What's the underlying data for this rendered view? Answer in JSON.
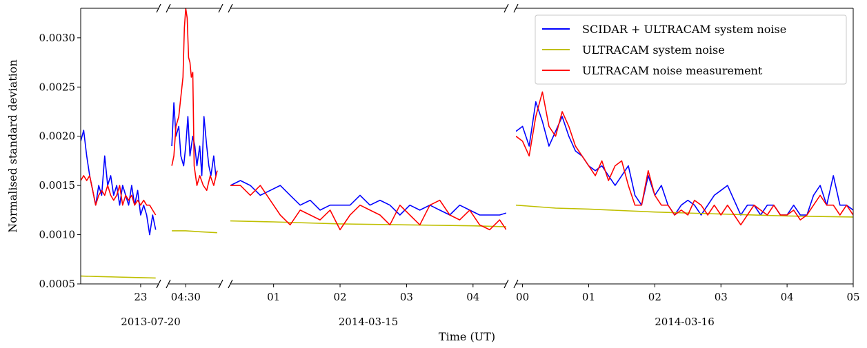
{
  "chart_data": {
    "type": "line",
    "xlabel": "Time (UT)",
    "ylabel": "Normalised standard deviation",
    "ylim": [
      0.0005,
      0.0033
    ],
    "yticks": [
      "0.0005",
      "0.0010",
      "0.0015",
      "0.0020",
      "0.0025",
      "0.0030"
    ],
    "ytick_values": [
      0.0005,
      0.001,
      0.0015,
      0.002,
      0.0025,
      0.003
    ],
    "grid": false,
    "legend_position": "top-right",
    "broken_x_axis": true,
    "colors": {
      "blue": "#0000ff",
      "yellow": "#bfbf00",
      "red": "#ff0000",
      "axis": "#000000"
    },
    "series_names": [
      "SCIDAR + ULTRACAM system noise",
      "ULTRACAM system noise",
      "ULTRACAM noise measurement"
    ],
    "panels": [
      {
        "date": "2013-07-20",
        "xlim": [
          22.0,
          23.3
        ],
        "ticks": [
          {
            "value": 23.0,
            "label": "23"
          }
        ],
        "series": [
          {
            "color_key": "blue",
            "x": [
              22.0,
              22.05,
              22.1,
              22.15,
              22.2,
              22.25,
              22.3,
              22.35,
              22.4,
              22.45,
              22.5,
              22.55,
              22.6,
              22.65,
              22.7,
              22.75,
              22.8,
              22.85,
              22.9,
              22.95,
              23.0,
              23.05,
              23.1,
              23.15,
              23.2,
              23.25
            ],
            "y": [
              0.00195,
              0.00206,
              0.0018,
              0.0016,
              0.00145,
              0.0013,
              0.0015,
              0.0014,
              0.0018,
              0.0015,
              0.0016,
              0.0014,
              0.0015,
              0.0013,
              0.0015,
              0.0014,
              0.0013,
              0.0015,
              0.0013,
              0.00145,
              0.0012,
              0.0013,
              0.0012,
              0.001,
              0.0012,
              0.00105
            ]
          },
          {
            "color_key": "yellow",
            "x": [
              22.0,
              22.3,
              22.6,
              22.9,
              23.25
            ],
            "y": [
              0.00058,
              0.000575,
              0.00057,
              0.000565,
              0.00056
            ]
          },
          {
            "color_key": "red",
            "x": [
              22.0,
              22.05,
              22.1,
              22.15,
              22.2,
              22.25,
              22.3,
              22.35,
              22.4,
              22.45,
              22.5,
              22.55,
              22.6,
              22.65,
              22.7,
              22.75,
              22.8,
              22.85,
              22.9,
              22.95,
              23.0,
              23.05,
              23.1,
              23.15,
              23.2,
              23.25
            ],
            "y": [
              0.00155,
              0.0016,
              0.00155,
              0.0016,
              0.00145,
              0.0013,
              0.0014,
              0.00145,
              0.0014,
              0.0015,
              0.0014,
              0.00135,
              0.0014,
              0.0015,
              0.0013,
              0.0014,
              0.00135,
              0.0014,
              0.0013,
              0.00135,
              0.0013,
              0.00135,
              0.0013,
              0.0013,
              0.00125,
              0.0012
            ]
          }
        ]
      },
      {
        "date": "2013-07-20",
        "xlim": [
          4.25,
          5.0
        ],
        "ticks": [
          {
            "value": 4.5,
            "label": "04:30"
          }
        ],
        "series": [
          {
            "color_key": "blue",
            "x": [
              4.3,
              4.33,
              4.36,
              4.4,
              4.43,
              4.47,
              4.5,
              4.53,
              4.56,
              4.6,
              4.63,
              4.66,
              4.7,
              4.73,
              4.76,
              4.8,
              4.83,
              4.86,
              4.9,
              4.93,
              4.95
            ],
            "y": [
              0.0019,
              0.00234,
              0.002,
              0.0021,
              0.0018,
              0.0017,
              0.0019,
              0.0022,
              0.0018,
              0.002,
              0.0019,
              0.0017,
              0.0019,
              0.0016,
              0.0022,
              0.0019,
              0.0017,
              0.0016,
              0.0018,
              0.0016,
              0.00165
            ]
          },
          {
            "color_key": "yellow",
            "x": [
              4.3,
              4.5,
              4.7,
              4.95
            ],
            "y": [
              0.00104,
              0.00104,
              0.00103,
              0.00102
            ]
          },
          {
            "color_key": "red",
            "x": [
              4.3,
              4.33,
              4.36,
              4.4,
              4.43,
              4.46,
              4.48,
              4.5,
              4.52,
              4.54,
              4.56,
              4.58,
              4.6,
              4.62,
              4.64,
              4.66,
              4.7,
              4.75,
              4.8,
              4.85,
              4.9,
              4.95
            ],
            "y": [
              0.0017,
              0.0018,
              0.0021,
              0.0022,
              0.0024,
              0.0026,
              0.0031,
              0.0033,
              0.0032,
              0.0028,
              0.00275,
              0.0026,
              0.00265,
              0.0017,
              0.0016,
              0.0015,
              0.0016,
              0.0015,
              0.00145,
              0.0016,
              0.0015,
              0.00165
            ]
          }
        ]
      },
      {
        "date": "2014-03-15",
        "xlim": [
          0.35,
          4.5
        ],
        "ticks": [
          {
            "value": 1,
            "label": "01"
          },
          {
            "value": 2,
            "label": "02"
          },
          {
            "value": 3,
            "label": "03"
          },
          {
            "value": 4,
            "label": "04"
          }
        ],
        "series": [
          {
            "color_key": "blue",
            "x": [
              0.35,
              0.5,
              0.65,
              0.8,
              0.95,
              1.1,
              1.25,
              1.4,
              1.55,
              1.7,
              1.85,
              2.0,
              2.15,
              2.3,
              2.45,
              2.6,
              2.75,
              2.9,
              3.05,
              3.2,
              3.35,
              3.5,
              3.65,
              3.8,
              3.95,
              4.1,
              4.25,
              4.4,
              4.5
            ],
            "y": [
              0.0015,
              0.00155,
              0.0015,
              0.0014,
              0.00145,
              0.0015,
              0.0014,
              0.0013,
              0.00135,
              0.00125,
              0.0013,
              0.0013,
              0.0013,
              0.0014,
              0.0013,
              0.00135,
              0.0013,
              0.0012,
              0.0013,
              0.00125,
              0.0013,
              0.00125,
              0.0012,
              0.0013,
              0.00125,
              0.0012,
              0.0012,
              0.0012,
              0.00122
            ]
          },
          {
            "color_key": "yellow",
            "x": [
              0.35,
              1.0,
              2.0,
              3.0,
              4.0,
              4.5
            ],
            "y": [
              0.00114,
              0.00113,
              0.00111,
              0.0011,
              0.00109,
              0.00108
            ]
          },
          {
            "color_key": "red",
            "x": [
              0.35,
              0.5,
              0.65,
              0.8,
              0.95,
              1.1,
              1.25,
              1.4,
              1.55,
              1.7,
              1.85,
              2.0,
              2.15,
              2.3,
              2.45,
              2.6,
              2.75,
              2.9,
              3.05,
              3.2,
              3.35,
              3.5,
              3.65,
              3.8,
              3.95,
              4.1,
              4.25,
              4.4,
              4.5
            ],
            "y": [
              0.0015,
              0.0015,
              0.0014,
              0.0015,
              0.00135,
              0.0012,
              0.0011,
              0.00125,
              0.0012,
              0.00115,
              0.00125,
              0.00105,
              0.0012,
              0.0013,
              0.00125,
              0.0012,
              0.0011,
              0.0013,
              0.0012,
              0.0011,
              0.0013,
              0.00135,
              0.0012,
              0.00115,
              0.00125,
              0.0011,
              0.00105,
              0.00115,
              0.00105
            ]
          }
        ]
      },
      {
        "date": "2014-03-16",
        "xlim": [
          -0.1,
          5.0
        ],
        "ticks": [
          {
            "value": 0,
            "label": "00"
          },
          {
            "value": 1,
            "label": "01"
          },
          {
            "value": 2,
            "label": "02"
          },
          {
            "value": 3,
            "label": "03"
          },
          {
            "value": 4,
            "label": "04"
          },
          {
            "value": 5,
            "label": "05"
          }
        ],
        "series": [
          {
            "color_key": "blue",
            "x": [
              -0.1,
              0.0,
              0.1,
              0.2,
              0.3,
              0.4,
              0.5,
              0.6,
              0.7,
              0.8,
              0.9,
              1.0,
              1.1,
              1.2,
              1.3,
              1.4,
              1.5,
              1.6,
              1.7,
              1.8,
              1.9,
              2.0,
              2.1,
              2.2,
              2.3,
              2.4,
              2.5,
              2.6,
              2.7,
              2.8,
              2.9,
              3.0,
              3.1,
              3.2,
              3.3,
              3.4,
              3.5,
              3.6,
              3.7,
              3.8,
              3.9,
              4.0,
              4.1,
              4.2,
              4.3,
              4.4,
              4.5,
              4.6,
              4.7,
              4.8,
              4.9,
              5.0
            ],
            "y": [
              0.00205,
              0.0021,
              0.0019,
              0.00235,
              0.00215,
              0.0019,
              0.00205,
              0.0022,
              0.002,
              0.00185,
              0.0018,
              0.0017,
              0.00165,
              0.0017,
              0.0016,
              0.0015,
              0.0016,
              0.0017,
              0.0014,
              0.0013,
              0.0016,
              0.0014,
              0.0015,
              0.0013,
              0.0012,
              0.0013,
              0.00135,
              0.0013,
              0.0012,
              0.0013,
              0.0014,
              0.00145,
              0.0015,
              0.00135,
              0.0012,
              0.0013,
              0.0013,
              0.0012,
              0.0013,
              0.0013,
              0.0012,
              0.0012,
              0.0013,
              0.0012,
              0.0012,
              0.0014,
              0.0015,
              0.0013,
              0.0016,
              0.0013,
              0.0013,
              0.00125
            ]
          },
          {
            "color_key": "yellow",
            "x": [
              -0.1,
              0.5,
              1.0,
              2.0,
              3.0,
              4.0,
              5.0
            ],
            "y": [
              0.0013,
              0.00127,
              0.00126,
              0.00123,
              0.00121,
              0.00119,
              0.00118
            ]
          },
          {
            "color_key": "red",
            "x": [
              -0.1,
              0.0,
              0.1,
              0.2,
              0.3,
              0.4,
              0.5,
              0.6,
              0.7,
              0.8,
              0.9,
              1.0,
              1.1,
              1.2,
              1.3,
              1.4,
              1.5,
              1.6,
              1.7,
              1.8,
              1.9,
              2.0,
              2.1,
              2.2,
              2.3,
              2.4,
              2.5,
              2.6,
              2.7,
              2.8,
              2.9,
              3.0,
              3.1,
              3.2,
              3.3,
              3.4,
              3.5,
              3.6,
              3.7,
              3.8,
              3.9,
              4.0,
              4.1,
              4.2,
              4.3,
              4.4,
              4.5,
              4.6,
              4.7,
              4.8,
              4.9,
              5.0
            ],
            "y": [
              0.002,
              0.00195,
              0.0018,
              0.0022,
              0.00245,
              0.0021,
              0.002,
              0.00225,
              0.0021,
              0.0019,
              0.0018,
              0.0017,
              0.0016,
              0.00175,
              0.00155,
              0.0017,
              0.00175,
              0.0015,
              0.0013,
              0.0013,
              0.00165,
              0.0014,
              0.0013,
              0.0013,
              0.0012,
              0.00125,
              0.0012,
              0.00135,
              0.0013,
              0.0012,
              0.0013,
              0.0012,
              0.0013,
              0.0012,
              0.0011,
              0.0012,
              0.0013,
              0.00125,
              0.0012,
              0.0013,
              0.0012,
              0.0012,
              0.00125,
              0.00115,
              0.0012,
              0.0013,
              0.0014,
              0.0013,
              0.0013,
              0.0012,
              0.0013,
              0.0012
            ]
          }
        ]
      }
    ]
  }
}
